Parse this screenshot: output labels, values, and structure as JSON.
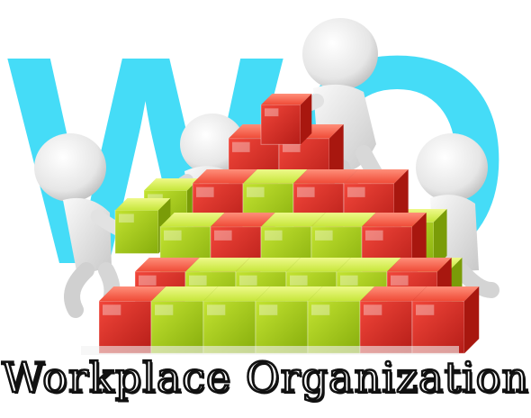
{
  "image": {
    "backdrop_text": "WO",
    "caption": "Workplace Organization",
    "colors": {
      "backdrop": "#45dcf7",
      "cube_red": "#e8342c",
      "cube_green": "#b4dc1c",
      "figure": "#ededed"
    }
  }
}
